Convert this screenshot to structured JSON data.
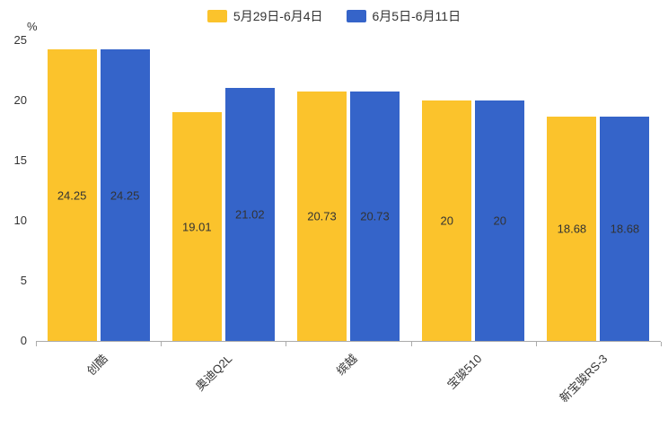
{
  "chart_data": {
    "type": "bar",
    "title": "",
    "ylabel_unit": "%",
    "ylim": [
      0,
      25
    ],
    "yticks": [
      0,
      5,
      10,
      15,
      20,
      25
    ],
    "grid": false,
    "legend_position": "top",
    "value_labels": true,
    "categories": [
      "创酷",
      "奥迪Q2L",
      "缤越",
      "宝骏510",
      "新宝骏RS-3"
    ],
    "series": [
      {
        "name": "5月29日-6月4日",
        "color": "#FBC32C",
        "values": [
          24.25,
          19.01,
          20.73,
          20,
          18.68
        ]
      },
      {
        "name": "6月5日-6月11日",
        "color": "#3564C9",
        "values": [
          24.25,
          21.02,
          20.73,
          20,
          18.68
        ]
      }
    ]
  }
}
